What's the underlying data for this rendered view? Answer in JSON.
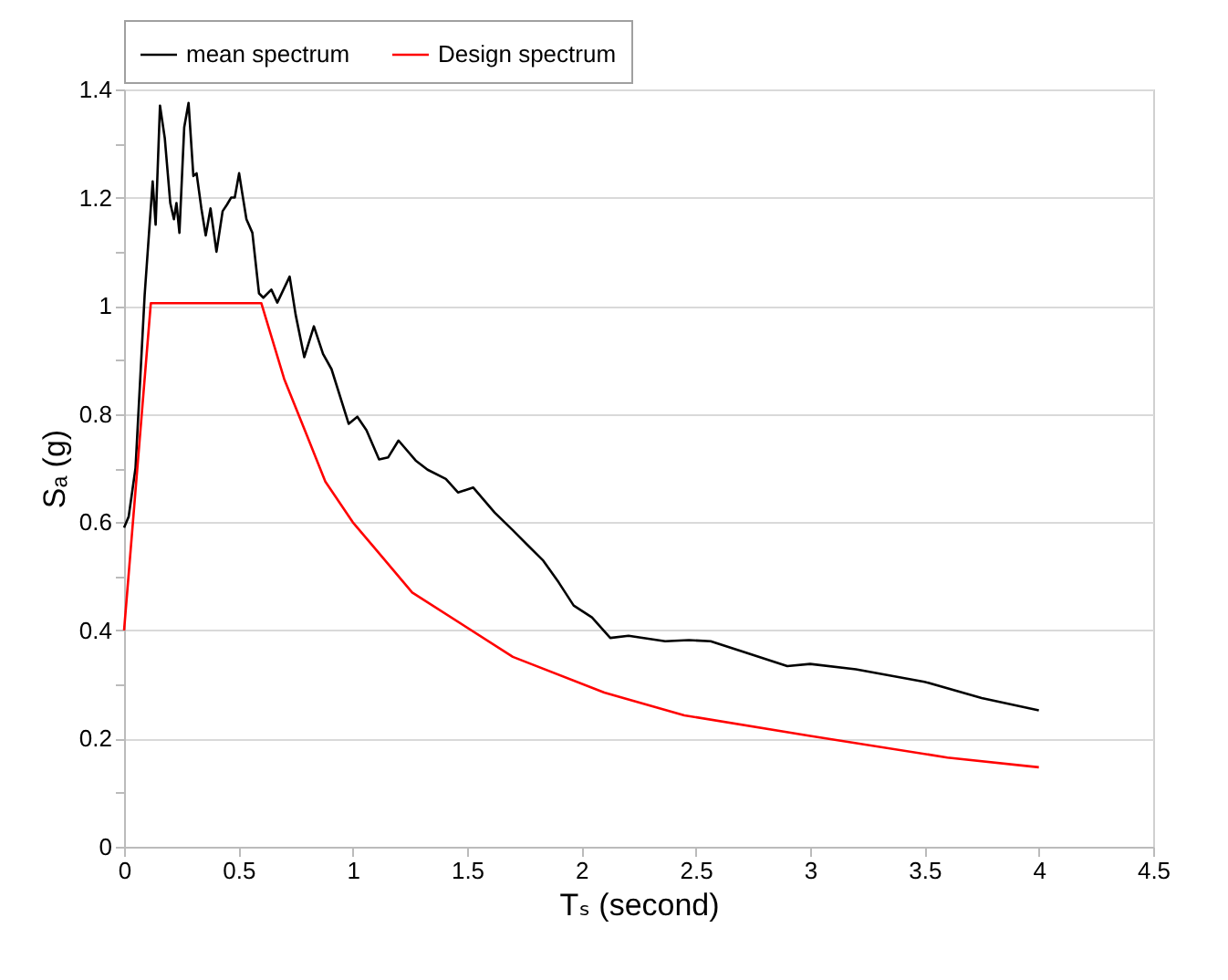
{
  "chart_data": {
    "type": "line",
    "xlabel": "Tₛ (second)",
    "ylabel": "Sₐ (g)",
    "xlim": [
      0,
      4.5
    ],
    "xticks": [
      0,
      0.5,
      1,
      1.5,
      2,
      2.5,
      3,
      3.5,
      4,
      4.5
    ],
    "ylim": [
      0,
      1.4
    ],
    "yticks": [
      0,
      {
        "value": 0.1,
        "label": null
      },
      0.2,
      {
        "value": 0.3,
        "label": null
      },
      0.4,
      {
        "value": 0.5,
        "label": null
      },
      0.6,
      {
        "value": 0.7,
        "label": null
      },
      0.8,
      {
        "value": 0.9,
        "label": null
      },
      1,
      {
        "value": 1.1,
        "label": null
      },
      1.2,
      {
        "value": 1.3,
        "label": null
      },
      1.4
    ],
    "grid": "y",
    "legend": "top",
    "marker": "none",
    "line_style": "solid",
    "series": [
      {
        "name": "mean spectrum",
        "color": "#000000",
        "x": [
          0,
          0.02,
          0.05,
          0.09,
          0.125,
          0.138,
          0.157,
          0.178,
          0.202,
          0.218,
          0.229,
          0.242,
          0.263,
          0.282,
          0.303,
          0.317,
          0.338,
          0.357,
          0.378,
          0.404,
          0.431,
          0.45,
          0.468,
          0.484,
          0.503,
          0.516,
          0.535,
          0.561,
          0.59,
          0.609,
          0.644,
          0.67,
          0.724,
          0.75,
          0.788,
          0.83,
          0.87,
          0.907,
          0.982,
          1.02,
          1.06,
          1.115,
          1.155,
          1.2,
          1.275,
          1.327,
          1.407,
          1.46,
          1.527,
          1.62,
          1.7,
          1.766,
          1.833,
          1.9,
          1.966,
          2.046,
          2.126,
          2.206,
          2.366,
          2.47,
          2.565,
          2.71,
          2.9,
          3.0,
          3.2,
          3.5,
          3.75,
          4.0
        ],
        "values": [
          0.59,
          0.61,
          0.7,
          1.02,
          1.23,
          1.15,
          1.37,
          1.31,
          1.19,
          1.16,
          1.19,
          1.135,
          1.33,
          1.375,
          1.24,
          1.245,
          1.18,
          1.13,
          1.18,
          1.1,
          1.175,
          1.187,
          1.2,
          1.2,
          1.245,
          1.21,
          1.16,
          1.135,
          1.023,
          1.015,
          1.03,
          1.006,
          1.054,
          0.984,
          0.905,
          0.962,
          0.911,
          0.883,
          0.782,
          0.795,
          0.77,
          0.716,
          0.72,
          0.751,
          0.714,
          0.697,
          0.68,
          0.655,
          0.664,
          0.618,
          0.585,
          0.557,
          0.529,
          0.489,
          0.446,
          0.424,
          0.386,
          0.39,
          0.38,
          0.382,
          0.38,
          0.36,
          0.334,
          0.338,
          0.328,
          0.305,
          0.275,
          0.252
        ]
      },
      {
        "name": "Design spectrum",
        "color": "#ff0000",
        "x": [
          0,
          0.117,
          0.6,
          0.7,
          0.8,
          0.88,
          1.0,
          1.1,
          1.26,
          1.7,
          2.1,
          2.45,
          3.0,
          3.6,
          4.0
        ],
        "values": [
          0.4,
          1.005,
          1.005,
          0.865,
          0.76,
          0.675,
          0.6,
          0.55,
          0.47,
          0.351,
          0.285,
          0.243,
          0.205,
          0.165,
          0.147
        ]
      }
    ]
  }
}
